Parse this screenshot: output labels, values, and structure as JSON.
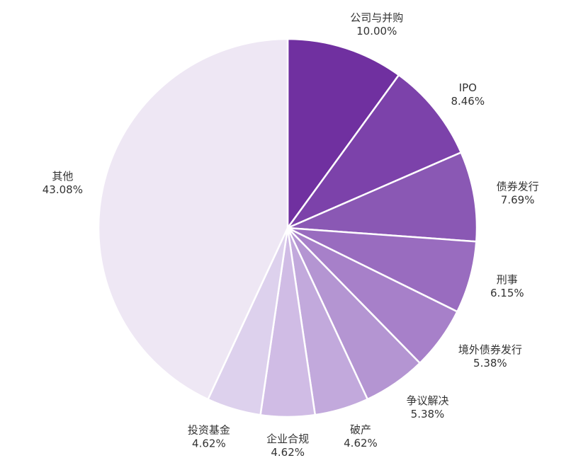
{
  "chart_data": {
    "type": "pie",
    "start_angle": "12 o'clock",
    "direction": "clockwise",
    "legend": "none",
    "slices": [
      {
        "label": "公司与并购",
        "value": 10.0,
        "display": "10.00%",
        "color": "#7030a0"
      },
      {
        "label": "IPO",
        "value": 8.46,
        "display": "8.46%",
        "color": "#7c42aa"
      },
      {
        "label": "债券发行",
        "value": 7.69,
        "display": "7.69%",
        "color": "#8a58b4"
      },
      {
        "label": "刑事",
        "value": 6.15,
        "display": "6.15%",
        "color": "#996cbf"
      },
      {
        "label": "境外债券发行",
        "value": 5.38,
        "display": "5.38%",
        "color": "#a780c9"
      },
      {
        "label": "争议解决",
        "value": 5.38,
        "display": "5.38%",
        "color": "#b495d2"
      },
      {
        "label": "破产",
        "value": 4.62,
        "display": "4.62%",
        "color": "#c2a9dc"
      },
      {
        "label": "企业合规",
        "value": 4.62,
        "display": "4.62%",
        "color": "#d0bce5"
      },
      {
        "label": "投资基金",
        "value": 4.62,
        "display": "4.62%",
        "color": "#ddd1ed"
      },
      {
        "label": "其他",
        "value": 43.08,
        "display": "43.08%",
        "color": "#eee7f4"
      }
    ]
  }
}
